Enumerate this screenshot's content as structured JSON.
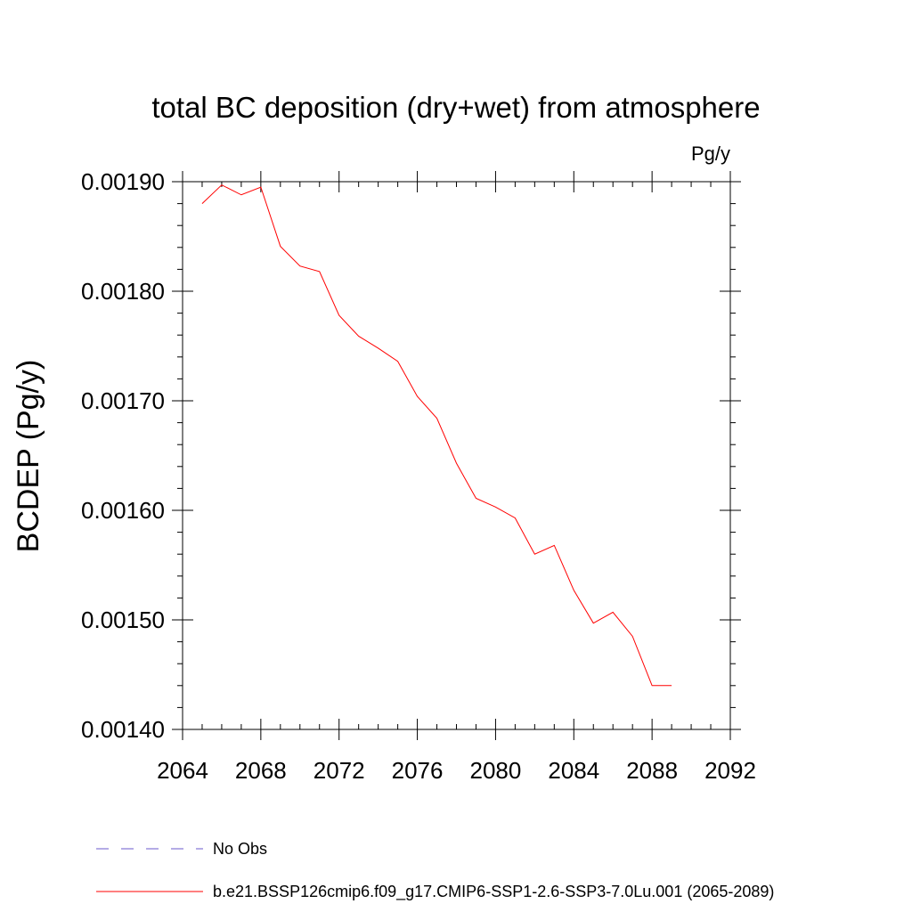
{
  "chart_data": {
    "type": "line",
    "title": "total BC deposition (dry+wet) from atmosphere",
    "units_label": "Pg/y",
    "ylabel": "BCDEP  (Pg/y)",
    "xlabel": "",
    "xlim": [
      2064,
      2092
    ],
    "ylim": [
      0.0014,
      0.0019
    ],
    "x_ticks": [
      2064,
      2068,
      2072,
      2076,
      2080,
      2084,
      2088,
      2092
    ],
    "x_tick_labels": [
      "2064",
      "2068",
      "2072",
      "2076",
      "2080",
      "2084",
      "2088",
      "2092"
    ],
    "y_ticks": [
      0.0014,
      0.0015,
      0.0016,
      0.0017,
      0.0018,
      0.0019
    ],
    "y_tick_labels": [
      "0.00140",
      "0.00150",
      "0.00160",
      "0.00170",
      "0.00180",
      "0.00190"
    ],
    "grid": false,
    "legend_position": "bottom",
    "series": [
      {
        "name": "b.e21.BSSP126cmip6.f09_g17.CMIP6-SSP1-2.6-SSP3-7.0Lu.001 (2065-2089)",
        "color": "#ff0000",
        "style": "solid",
        "x": [
          2065,
          2066,
          2067,
          2068,
          2069,
          2070,
          2071,
          2072,
          2073,
          2074,
          2075,
          2076,
          2077,
          2078,
          2079,
          2080,
          2081,
          2082,
          2083,
          2084,
          2085,
          2086,
          2087,
          2088,
          2089
        ],
        "values": [
          0.00188,
          0.001897,
          0.001888,
          0.001895,
          0.001841,
          0.001823,
          0.001818,
          0.001778,
          0.001759,
          0.001748,
          0.001736,
          0.001704,
          0.001684,
          0.001643,
          0.001611,
          0.001603,
          0.001593,
          0.00156,
          0.001568,
          0.001527,
          0.001497,
          0.001507,
          0.001485,
          0.00144,
          0.00144
        ]
      }
    ],
    "legend": [
      {
        "label": "No Obs",
        "color": "#6a5acd",
        "style": "dashed"
      },
      {
        "label": "b.e21.BSSP126cmip6.f09_g17.CMIP6-SSP1-2.6-SSP3-7.0Lu.001 (2065-2089)",
        "color": "#ff0000",
        "style": "solid"
      }
    ]
  }
}
